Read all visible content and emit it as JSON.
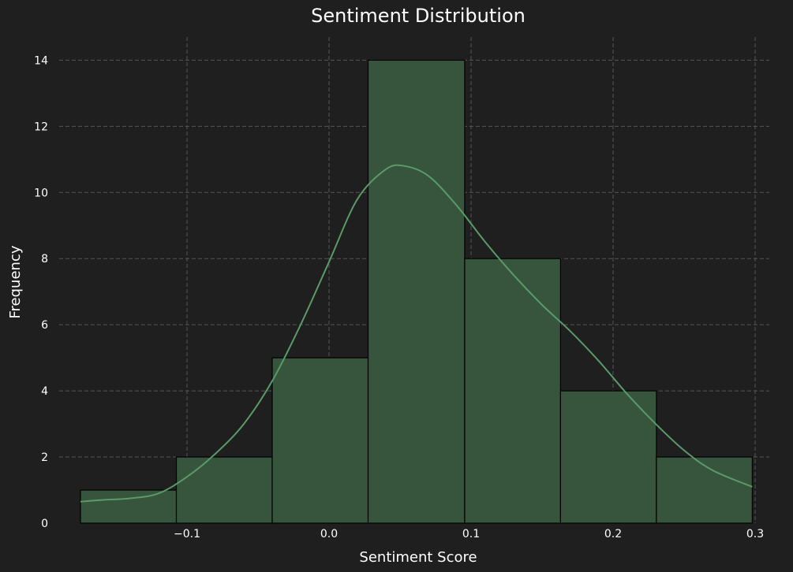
{
  "chart_data": {
    "type": "bar",
    "title": "Sentiment Distribution",
    "xlabel": "Sentiment Score",
    "ylabel": "Frequency",
    "xlim": [
      -0.19,
      0.31
    ],
    "ylim": [
      0,
      14.7
    ],
    "xticks": [
      -0.1,
      0.0,
      0.1,
      0.2,
      0.3
    ],
    "xtick_labels": [
      "−0.1",
      "0.0",
      "0.1",
      "0.2",
      "0.3"
    ],
    "yticks": [
      0,
      2,
      4,
      6,
      8,
      10,
      12,
      14
    ],
    "ytick_labels": [
      "0",
      "2",
      "4",
      "6",
      "8",
      "10",
      "12",
      "14"
    ],
    "grid": true,
    "bins": [
      {
        "x0": -0.175,
        "x1": -0.1075,
        "count": 1
      },
      {
        "x0": -0.1075,
        "x1": -0.04,
        "count": 2
      },
      {
        "x0": -0.04,
        "x1": 0.0275,
        "count": 5
      },
      {
        "x0": 0.0275,
        "x1": 0.0955,
        "count": 14
      },
      {
        "x0": 0.0955,
        "x1": 0.163,
        "count": 8
      },
      {
        "x0": 0.163,
        "x1": 0.2305,
        "count": 4
      },
      {
        "x0": 0.2305,
        "x1": 0.298,
        "count": 2
      }
    ],
    "kde": {
      "x": [
        -0.175,
        -0.16,
        -0.14,
        -0.12,
        -0.1,
        -0.08,
        -0.06,
        -0.04,
        -0.02,
        0.0,
        0.02,
        0.04,
        0.053,
        0.07,
        0.09,
        0.11,
        0.13,
        0.15,
        0.17,
        0.19,
        0.21,
        0.23,
        0.25,
        0.27,
        0.298
      ],
      "y": [
        0.65,
        0.7,
        0.75,
        0.9,
        1.4,
        2.1,
        3.0,
        4.3,
        6.0,
        7.9,
        9.8,
        10.7,
        10.8,
        10.5,
        9.6,
        8.5,
        7.5,
        6.6,
        5.8,
        4.9,
        3.9,
        3.0,
        2.2,
        1.6,
        1.1
      ]
    },
    "colors": {
      "background": "#1f1f1f",
      "bar_fill": "#36553c",
      "kde_line": "#5a9a6a"
    }
  }
}
